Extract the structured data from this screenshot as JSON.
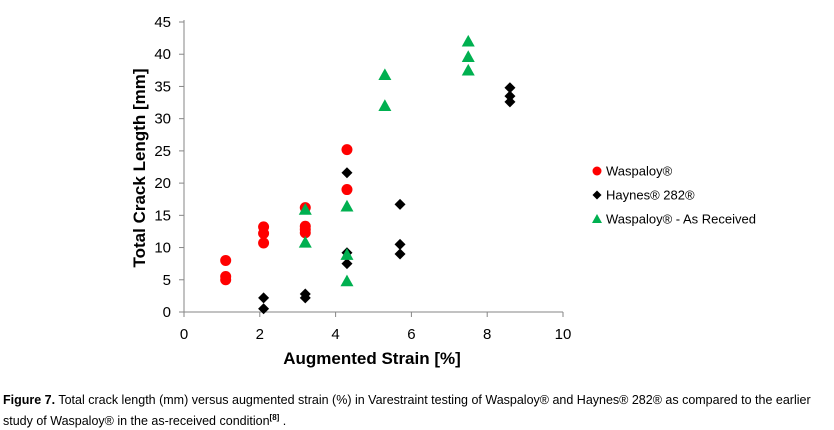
{
  "chart_data": {
    "type": "scatter",
    "title": "",
    "xlabel": "Augmented Strain [%]",
    "ylabel": "Total Crack Length [mm]",
    "xlim": [
      0,
      10
    ],
    "ylim": [
      0,
      45
    ],
    "xticks": [
      "0",
      "2",
      "4",
      "6",
      "8",
      "10"
    ],
    "yticks": [
      "0",
      "5",
      "10",
      "15",
      "20",
      "25",
      "30",
      "35",
      "40",
      "45"
    ],
    "grid": false,
    "legend_position": "right",
    "series": [
      {
        "name": "Waspaloy®",
        "marker": "circle",
        "color": "#ff0000",
        "x": [
          1.1,
          1.1,
          1.1,
          2.1,
          2.1,
          2.1,
          3.2,
          3.2,
          3.2,
          3.2,
          4.3,
          4.3
        ],
        "y": [
          8.0,
          5.5,
          5.0,
          13.2,
          12.2,
          10.7,
          16.2,
          13.3,
          12.8,
          12.3,
          25.2,
          19.0
        ]
      },
      {
        "name": "Haynes® 282®",
        "marker": "diamond",
        "color": "#000000",
        "x": [
          2.1,
          2.1,
          3.2,
          3.2,
          4.3,
          4.3,
          4.3,
          5.7,
          5.7,
          5.7,
          8.6,
          8.6,
          8.6
        ],
        "y": [
          2.2,
          0.5,
          2.8,
          2.2,
          21.6,
          9.2,
          7.5,
          16.7,
          10.5,
          9.0,
          34.8,
          33.5,
          32.6
        ]
      },
      {
        "name": "Waspaloy® - As Received",
        "marker": "triangle",
        "color": "#00b050",
        "x": [
          3.2,
          3.2,
          4.3,
          4.3,
          4.3,
          5.3,
          5.3,
          7.5,
          7.5,
          7.5
        ],
        "y": [
          15.9,
          10.8,
          16.4,
          8.9,
          4.8,
          36.8,
          32.0,
          42.0,
          39.6,
          37.5
        ]
      }
    ]
  },
  "caption": {
    "label": "Figure 7.",
    "text": " Total crack length (mm) versus augmented strain (%) in Varestraint testing of Waspaloy® and Haynes® 282® as compared to the earlier study of Waspaloy® in the as-received condition",
    "ref": "[8]",
    "tail": " ."
  }
}
